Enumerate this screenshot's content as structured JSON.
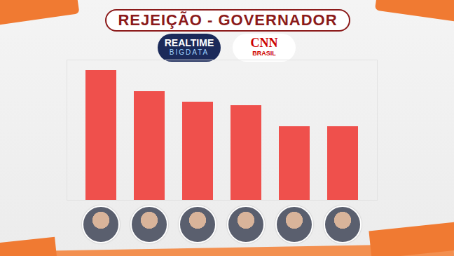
{
  "chart_data": {
    "type": "bar",
    "title": "REJEIÇÃO - GOVERNADOR",
    "categories": [
      null,
      null,
      null,
      null,
      null,
      null
    ],
    "values": [
      37,
      31,
      28,
      27,
      21,
      21
    ],
    "color": "#ef504c",
    "ylim": [
      0,
      40
    ],
    "tick_labels": false,
    "grid": false
  },
  "logos": [
    [
      "REALTIME",
      "BIGDATA"
    ],
    [
      "CNN",
      "BRASIL"
    ]
  ]
}
